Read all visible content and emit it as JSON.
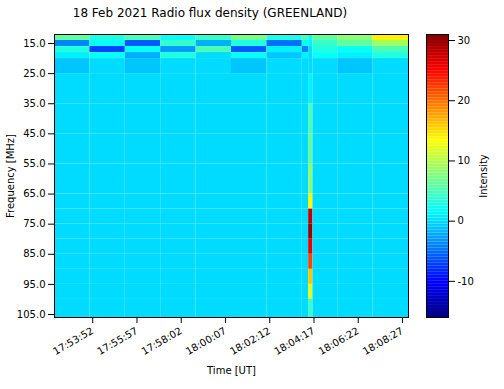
{
  "chart_data": {
    "type": "heatmap",
    "title": "18 Feb 2021 Radio flux density (GREENLAND)",
    "xlabel": "Time [UT]",
    "ylabel": "Frequency [MHz]",
    "xlim": [
      64324,
      65324
    ],
    "xticks": [
      {
        "value": 64432,
        "label": "17:53:52"
      },
      {
        "value": 64557,
        "label": "17:55:57"
      },
      {
        "value": 64682,
        "label": "17:58:02"
      },
      {
        "value": 64807,
        "label": "18:00:07"
      },
      {
        "value": 64932,
        "label": "18:02:12"
      },
      {
        "value": 65057,
        "label": "18:04:17"
      },
      {
        "value": 65182,
        "label": "18:06:22"
      },
      {
        "value": 65307,
        "label": "18:08:27"
      }
    ],
    "ylim": [
      106,
      12
    ],
    "yticks": [
      {
        "value": 15,
        "label": "15.0"
      },
      {
        "value": 25,
        "label": "25.0"
      },
      {
        "value": 35,
        "label": "35.0"
      },
      {
        "value": 45,
        "label": "45.0"
      },
      {
        "value": 55,
        "label": "55.0"
      },
      {
        "value": 65,
        "label": "65.0"
      },
      {
        "value": 75,
        "label": "75.0"
      },
      {
        "value": 85,
        "label": "85.0"
      },
      {
        "value": 95,
        "label": "95.0"
      },
      {
        "value": 105,
        "label": "105.0"
      }
    ],
    "x_edges": [
      64324,
      64424,
      64524,
      64624,
      64724,
      64824,
      64924,
      65024,
      65042,
      65054,
      65124,
      65224,
      65324
    ],
    "y_edges": [
      12,
      14,
      16,
      18,
      20,
      25,
      35,
      45,
      55,
      65,
      70,
      75,
      80,
      85,
      90,
      95,
      100,
      106
    ],
    "values": [
      [
        6,
        3,
        5,
        2,
        4,
        7,
        3,
        5,
        2,
        6,
        8,
        14
      ],
      [
        -4,
        2,
        -6,
        4,
        -2,
        3,
        -5,
        2,
        1,
        4,
        6,
        9
      ],
      [
        3,
        -7,
        2,
        -3,
        5,
        -6,
        1,
        -4,
        0,
        3,
        2,
        5
      ],
      [
        1,
        2,
        -2,
        3,
        0,
        2,
        -1,
        1,
        0,
        2,
        1,
        3
      ],
      [
        -1,
        0,
        -1,
        0,
        0,
        -1,
        0,
        0,
        0,
        0,
        -1,
        0
      ],
      [
        0,
        0,
        0,
        0,
        0,
        0,
        0,
        0,
        1,
        0,
        0,
        0
      ],
      [
        0,
        0,
        0,
        0,
        0,
        0,
        0,
        0,
        5,
        0,
        0,
        0
      ],
      [
        0,
        0,
        0,
        0,
        0,
        0,
        0,
        0,
        6,
        0,
        0,
        0
      ],
      [
        0,
        0,
        0,
        0,
        0,
        0,
        0,
        0,
        8,
        0,
        0,
        0
      ],
      [
        0,
        0,
        0,
        0,
        0,
        0,
        0,
        0,
        13,
        0,
        0,
        0
      ],
      [
        0,
        0,
        0,
        0,
        0,
        0,
        0,
        0,
        28,
        0,
        0,
        0
      ],
      [
        0,
        0,
        0,
        0,
        0,
        0,
        0,
        0,
        30,
        0,
        0,
        0
      ],
      [
        0,
        0,
        0,
        0,
        0,
        0,
        0,
        0,
        26,
        0,
        0,
        0
      ],
      [
        0,
        0,
        0,
        0,
        0,
        0,
        0,
        0,
        22,
        0,
        0,
        0
      ],
      [
        0,
        0,
        0,
        0,
        0,
        0,
        0,
        0,
        16,
        0,
        0,
        0
      ],
      [
        0,
        0,
        0,
        0,
        0,
        0,
        0,
        0,
        12,
        0,
        0,
        0
      ],
      [
        0,
        0,
        0,
        0,
        0,
        0,
        0,
        0,
        4,
        0,
        0,
        0
      ]
    ],
    "colorbar": {
      "range": [
        -16,
        31
      ],
      "ticks": [
        -10,
        0,
        10,
        20,
        30
      ],
      "label": "Intensity"
    }
  }
}
